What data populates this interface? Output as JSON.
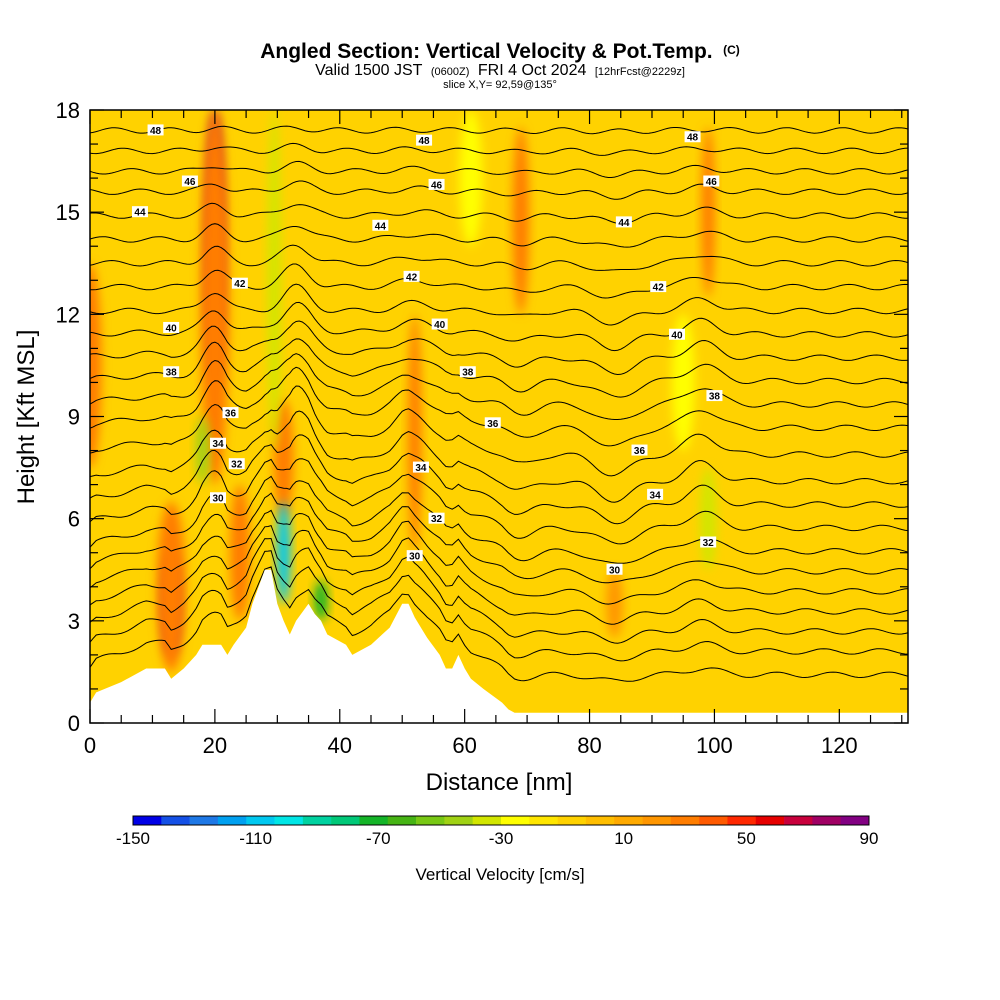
{
  "title": {
    "main": "Angled Section: Vertical Velocity & Pot.Temp.",
    "unit": "(C)",
    "valid_prefix": "Valid 1500 JST",
    "valid_utc": "(0600Z)",
    "valid_date": "FRI 4 Oct 2024",
    "forecast": "[12hrFcst@2229z]",
    "slice": "slice X,Y= 92,59@135°"
  },
  "chart_data": {
    "type": "heatmap",
    "xlabel": "Distance [nm]",
    "ylabel": "Height [Kft MSL]",
    "xlim": [
      0,
      131
    ],
    "ylim": [
      0,
      18
    ],
    "x_ticks": [
      0,
      20,
      40,
      60,
      80,
      100,
      120
    ],
    "y_ticks": [
      0,
      3,
      6,
      9,
      12,
      15,
      18
    ],
    "colorbar": {
      "title": "Vertical Velocity [cm/s]",
      "tick_labels": [
        -150,
        -110,
        -70,
        -30,
        10,
        50,
        90
      ],
      "min": -150,
      "max": 90,
      "step": 10,
      "colors": [
        "#0000e6",
        "#1450e6",
        "#1e78e6",
        "#00a0f0",
        "#00c8f0",
        "#00e6e6",
        "#00d2a0",
        "#00c878",
        "#14b428",
        "#46b414",
        "#78c814",
        "#a0d214",
        "#d2e600",
        "#ffff00",
        "#ffe600",
        "#ffd200",
        "#ffbe00",
        "#ffaa00",
        "#ff9600",
        "#ff7d00",
        "#ff5a00",
        "#ff2800",
        "#e60000",
        "#c8003c",
        "#a00064",
        "#820082"
      ]
    },
    "background_w": 5,
    "velocity_features": [
      {
        "x": 0,
        "x_width": 3,
        "y_bottom": 7.5,
        "y_top": 13.5,
        "w": 45
      },
      {
        "x": 13,
        "x_width": 2,
        "y_bottom": 2.0,
        "y_top": 5.0,
        "w": 90
      },
      {
        "x": 13,
        "x_width": 4,
        "y_bottom": 1.5,
        "y_top": 6.5,
        "w": 40
      },
      {
        "x": 20,
        "x_width": 2,
        "y_bottom": 10.0,
        "y_top": 18.0,
        "w": 90
      },
      {
        "x": 20,
        "x_width": 4,
        "y_bottom": 7.0,
        "y_top": 18.0,
        "w": 40
      },
      {
        "x": 18,
        "x_width": 1.5,
        "y_bottom": 7.0,
        "y_top": 9.0,
        "w": -40
      },
      {
        "x": 24,
        "x_width": 2.5,
        "y_bottom": 3.0,
        "y_top": 7.0,
        "w": 45
      },
      {
        "x": 31,
        "x_width": 2.5,
        "y_bottom": 6.0,
        "y_top": 9.5,
        "w": 45
      },
      {
        "x": 29.5,
        "x_width": 1.5,
        "y_bottom": 8.0,
        "y_top": 18.0,
        "w": -30
      },
      {
        "x": 31,
        "x_width": 1.5,
        "y_bottom": 3.5,
        "y_top": 6.5,
        "w": -110
      },
      {
        "x": 37,
        "x_width": 1.5,
        "y_bottom": 3.0,
        "y_top": 4.2,
        "w": -70
      },
      {
        "x": 52,
        "x_width": 1.5,
        "y_bottom": 5.0,
        "y_top": 12.0,
        "w": 40
      },
      {
        "x": 69,
        "x_width": 2,
        "y_bottom": 12.0,
        "y_top": 17.5,
        "w": 45
      },
      {
        "x": 84,
        "x_width": 2,
        "y_bottom": 2.5,
        "y_top": 4.5,
        "w": 35
      },
      {
        "x": 99,
        "x_width": 2,
        "y_bottom": 4.5,
        "y_top": 7.5,
        "w": -30
      },
      {
        "x": 99,
        "x_width": 1.5,
        "y_bottom": 12.5,
        "y_top": 17.5,
        "w": 40
      },
      {
        "x": 61,
        "x_width": 3,
        "y_bottom": 14.0,
        "y_top": 18.0,
        "w": -15
      },
      {
        "x": 95,
        "x_width": 3,
        "y_bottom": 8.0,
        "y_top": 12.0,
        "w": -15
      }
    ],
    "terrain": {
      "x": [
        0,
        1,
        5,
        9,
        12,
        13,
        15,
        17,
        18,
        21,
        22,
        23,
        25,
        26,
        28,
        29,
        30,
        31,
        32,
        33,
        35,
        36,
        37,
        38,
        41,
        42,
        45,
        48,
        50,
        51,
        52,
        54,
        56,
        57,
        58,
        59,
        60,
        61,
        63,
        66,
        67,
        68,
        71,
        131
      ],
      "y": [
        0.6,
        0.9,
        1.2,
        1.6,
        1.6,
        1.3,
        1.6,
        2.0,
        2.3,
        2.3,
        2.0,
        2.3,
        2.8,
        3.5,
        4.5,
        4.5,
        3.5,
        3.0,
        2.6,
        3.0,
        3.5,
        3.2,
        3.0,
        2.6,
        2.3,
        2.0,
        2.3,
        2.8,
        3.5,
        3.5,
        3.1,
        2.5,
        2.0,
        1.6,
        1.6,
        2.0,
        1.6,
        1.3,
        1.0,
        0.6,
        0.4,
        0.3,
        0.3,
        0.3
      ]
    },
    "theta_contours": {
      "base_height": [
        1.2,
        1.9,
        2.5,
        3.1,
        3.7,
        4.3,
        4.9,
        5.6,
        6.3,
        7.0,
        7.8,
        8.6,
        9.3,
        10.0,
        10.7,
        11.4,
        12.1,
        12.8,
        13.5,
        14.2,
        14.9,
        15.6,
        16.2,
        16.8,
        17.4
      ],
      "labels": [
        {
          "text": "30",
          "x": 20.5,
          "y": 6.6
        },
        {
          "text": "34",
          "x": 20.5,
          "y": 8.2
        },
        {
          "text": "32",
          "x": 23.5,
          "y": 7.6
        },
        {
          "text": "36",
          "x": 22.5,
          "y": 9.1
        },
        {
          "text": "38",
          "x": 13,
          "y": 10.3
        },
        {
          "text": "40",
          "x": 13,
          "y": 11.6
        },
        {
          "text": "42",
          "x": 24,
          "y": 12.9
        },
        {
          "text": "44",
          "x": 8,
          "y": 15.0
        },
        {
          "text": "46",
          "x": 16,
          "y": 15.9
        },
        {
          "text": "48",
          "x": 10.5,
          "y": 17.4
        },
        {
          "text": "30",
          "x": 52,
          "y": 4.9
        },
        {
          "text": "32",
          "x": 55.5,
          "y": 6.0
        },
        {
          "text": "34",
          "x": 53,
          "y": 7.5
        },
        {
          "text": "36",
          "x": 64.5,
          "y": 8.8
        },
        {
          "text": "38",
          "x": 60.5,
          "y": 10.3
        },
        {
          "text": "40",
          "x": 56,
          "y": 11.7
        },
        {
          "text": "42",
          "x": 51.5,
          "y": 13.1
        },
        {
          "text": "44",
          "x": 46.5,
          "y": 14.6
        },
        {
          "text": "46",
          "x": 55.5,
          "y": 15.8
        },
        {
          "text": "48",
          "x": 53.5,
          "y": 17.1
        },
        {
          "text": "30",
          "x": 84,
          "y": 4.5
        },
        {
          "text": "32",
          "x": 99,
          "y": 5.3
        },
        {
          "text": "34",
          "x": 90.5,
          "y": 6.7
        },
        {
          "text": "36",
          "x": 88,
          "y": 8.0
        },
        {
          "text": "38",
          "x": 100,
          "y": 9.6
        },
        {
          "text": "40",
          "x": 94,
          "y": 11.4
        },
        {
          "text": "42",
          "x": 91,
          "y": 12.8
        },
        {
          "text": "44",
          "x": 85.5,
          "y": 14.7
        },
        {
          "text": "46",
          "x": 99.5,
          "y": 15.9
        },
        {
          "text": "48",
          "x": 96.5,
          "y": 17.2
        }
      ]
    }
  }
}
